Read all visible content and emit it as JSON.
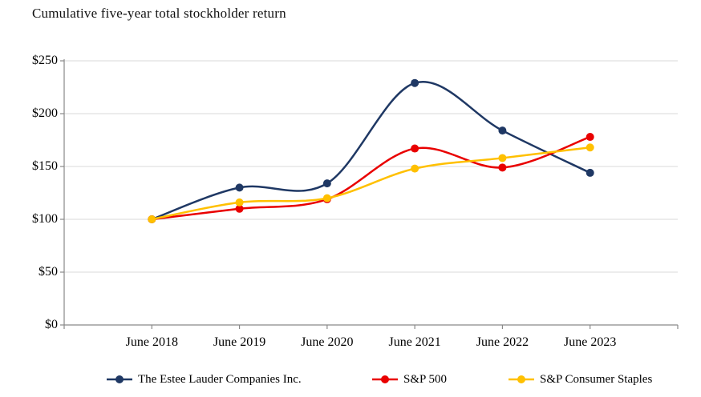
{
  "title": "Cumulative five-year total stockholder return",
  "chart_data": {
    "type": "line",
    "smooth": true,
    "categories": [
      "June 2018",
      "June 2019",
      "June 2020",
      "June 2021",
      "June 2022",
      "June 2023"
    ],
    "series": [
      {
        "name": "The Estee Lauder Companies Inc.",
        "color": "#1f3864",
        "values": [
          100,
          130,
          134,
          229,
          184,
          144
        ]
      },
      {
        "name": "S&P 500",
        "color": "#e90000",
        "values": [
          100,
          110,
          119,
          167,
          149,
          178
        ]
      },
      {
        "name": "S&P Consumer Staples",
        "color": "#ffc000",
        "values": [
          100,
          116,
          120,
          148,
          158,
          168
        ]
      }
    ],
    "y_ticks": [
      "$0",
      "$50",
      "$100",
      "$150",
      "$200",
      "$250"
    ],
    "y_tick_values": [
      0,
      50,
      100,
      150,
      200,
      250
    ],
    "ylim": [
      0,
      250
    ],
    "grid": true,
    "legend_position": "bottom",
    "style": {
      "grid_color": "#d9d9d9",
      "axis_color": "#898989",
      "background": "#ffffff"
    }
  }
}
